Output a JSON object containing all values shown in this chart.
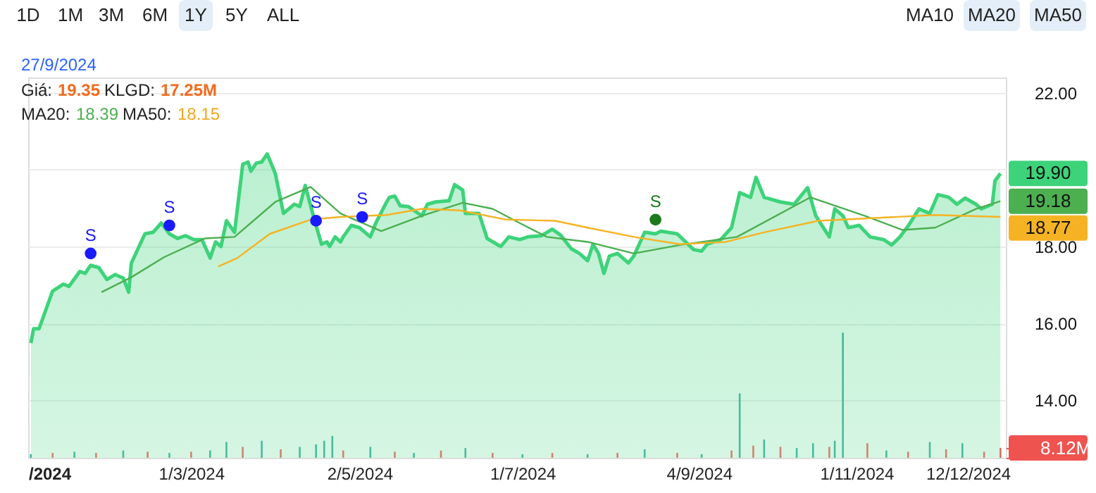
{
  "chart_data": {
    "type": "area",
    "xlim": [
      "2024-01-01",
      "2024-12-26"
    ],
    "xticks": [
      {
        "value": "2024-01-01",
        "label": "/2024"
      },
      {
        "value": "2024-03-01",
        "label": "1/3/2024"
      },
      {
        "value": "2024-05-02",
        "label": "2/5/2024"
      },
      {
        "value": "2024-07-01",
        "label": "1/7/2024"
      },
      {
        "value": "2024-09-04",
        "label": "4/9/2024"
      },
      {
        "value": "2024-11-01",
        "label": "1/11/2024"
      },
      {
        "value": "2024-12-12",
        "label": "12/12/2024"
      }
    ],
    "ylim": [
      12.5,
      22.4
    ],
    "yticks": [
      {
        "value": 14,
        "label": "14.00"
      },
      {
        "value": 16,
        "label": "16.00"
      },
      {
        "value": 18,
        "label": "18.00"
      },
      {
        "value": 20,
        "label": null
      },
      {
        "value": 22,
        "label": "22.00"
      }
    ],
    "y2lim": [
      0,
      313
    ],
    "y2ticks": [
      {
        "value": 0,
        "label": null
      },
      {
        "value": 8.12,
        "label": "8.12M"
      }
    ],
    "grid": "y",
    "series": [
      {
        "color": "#3dd37a",
        "x": [
          "2024-01-02",
          "2024-01-03",
          "2024-01-05",
          "2024-01-10",
          "2024-01-14",
          "2024-01-16",
          "2024-01-20",
          "2024-01-22",
          "2024-01-24",
          "2024-01-27",
          "2024-01-30",
          "2024-02-02",
          "2024-02-05",
          "2024-02-07",
          "2024-02-08",
          "2024-02-12",
          "2024-02-13",
          "2024-02-16",
          "2024-02-19",
          "2024-02-22",
          "2024-02-25",
          "2024-02-28",
          "2024-03-02",
          "2024-03-05",
          "2024-03-08",
          "2024-03-10",
          "2024-03-12",
          "2024-03-14",
          "2024-03-17",
          "2024-03-20",
          "2024-03-22",
          "2024-03-23",
          "2024-03-25",
          "2024-03-27",
          "2024-03-29",
          "2024-04-01",
          "2024-04-04",
          "2024-04-08",
          "2024-04-10",
          "2024-04-12",
          "2024-04-15",
          "2024-04-18",
          "2024-04-20",
          "2024-04-21",
          "2024-04-23",
          "2024-04-25",
          "2024-04-26",
          "2024-04-29",
          "2024-05-02",
          "2024-05-06",
          "2024-05-08",
          "2024-05-12",
          "2024-05-13",
          "2024-05-15",
          "2024-05-17",
          "2024-05-20",
          "2024-05-22",
          "2024-05-25",
          "2024-05-27",
          "2024-05-30",
          "2024-06-04",
          "2024-06-06",
          "2024-06-09",
          "2024-06-10",
          "2024-06-15",
          "2024-06-18",
          "2024-06-23",
          "2024-06-26",
          "2024-06-30",
          "2024-07-03",
          "2024-07-08",
          "2024-07-12",
          "2024-07-15",
          "2024-07-19",
          "2024-07-22",
          "2024-07-25",
          "2024-07-27",
          "2024-07-29",
          "2024-07-31",
          "2024-08-02",
          "2024-08-05",
          "2024-08-09",
          "2024-08-11",
          "2024-08-15",
          "2024-08-19",
          "2024-08-21",
          "2024-08-27",
          "2024-09-02",
          "2024-09-05",
          "2024-09-07",
          "2024-09-12",
          "2024-09-16",
          "2024-09-19",
          "2024-09-23",
          "2024-09-25",
          "2024-09-28",
          "2024-10-04",
          "2024-10-09",
          "2024-10-14",
          "2024-10-17",
          "2024-10-22",
          "2024-10-24",
          "2024-10-27",
          "2024-10-29",
          "2024-11-02",
          "2024-11-06",
          "2024-11-11",
          "2024-11-14",
          "2024-11-17",
          "2024-11-20",
          "2024-11-24",
          "2024-11-28",
          "2024-12-01",
          "2024-12-05",
          "2024-12-08",
          "2024-12-11",
          "2024-12-15",
          "2024-12-17",
          "2024-12-21",
          "2024-12-22",
          "2024-12-24"
        ],
        "values": [
          15.49,
          15.86,
          15.86,
          16.84,
          17.02,
          16.96,
          17.35,
          17.3,
          17.51,
          17.45,
          17.14,
          17.27,
          17.18,
          16.81,
          17.57,
          18.18,
          18.33,
          18.37,
          18.61,
          18.33,
          18.21,
          18.28,
          18.18,
          18.18,
          17.7,
          18.12,
          18.0,
          18.67,
          18.37,
          20.14,
          20.2,
          19.96,
          20.17,
          20.2,
          20.41,
          19.9,
          18.86,
          19.1,
          19.04,
          19.59,
          18.8,
          18.06,
          18.12,
          18.0,
          18.25,
          18.12,
          18.25,
          18.55,
          18.49,
          18.25,
          18.61,
          19.16,
          19.28,
          19.31,
          19.06,
          19.04,
          18.94,
          18.8,
          19.1,
          19.16,
          19.19,
          19.61,
          19.47,
          18.86,
          18.86,
          18.21,
          18.0,
          18.25,
          18.18,
          18.25,
          18.28,
          18.45,
          18.3,
          17.94,
          17.82,
          17.63,
          18.06,
          17.82,
          17.3,
          17.75,
          17.82,
          17.57,
          17.75,
          18.37,
          18.33,
          18.4,
          18.33,
          17.92,
          17.88,
          18.06,
          18.18,
          18.49,
          19.4,
          19.28,
          19.8,
          19.28,
          19.16,
          19.1,
          19.53,
          18.8,
          18.25,
          18.98,
          18.8,
          18.49,
          18.55,
          18.25,
          18.18,
          18.04,
          18.25,
          18.53,
          18.98,
          18.86,
          19.35,
          19.28,
          19.1,
          19.26,
          19.1,
          18.98,
          19.1,
          19.71,
          19.9
        ]
      },
      {
        "type": "line",
        "color": "#4caf50",
        "x": [
          "2024-01-28",
          "2024-02-08",
          "2024-02-20",
          "2024-03-06",
          "2024-03-17",
          "2024-04-01",
          "2024-04-14",
          "2024-04-25",
          "2024-05-10",
          "2024-05-25",
          "2024-06-09",
          "2024-06-20",
          "2024-06-30",
          "2024-07-10",
          "2024-07-25",
          "2024-08-11",
          "2024-08-28",
          "2024-09-18",
          "2024-10-15",
          "2024-11-04",
          "2024-11-18",
          "2024-11-30",
          "2024-12-15",
          "2024-12-24"
        ],
        "values": [
          16.81,
          17.2,
          17.72,
          18.21,
          18.25,
          19.16,
          19.55,
          18.86,
          18.4,
          18.8,
          19.14,
          18.98,
          18.61,
          18.25,
          18.12,
          17.82,
          18.04,
          18.25,
          19.28,
          18.8,
          18.43,
          18.49,
          18.98,
          19.18
        ]
      },
      {
        "type": "line",
        "color": "#f5b324",
        "x": [
          "2024-03-11",
          "2024-03-18",
          "2024-03-30",
          "2024-04-14",
          "2024-04-25",
          "2024-05-12",
          "2024-05-25",
          "2024-06-08",
          "2024-06-25",
          "2024-07-13",
          "2024-07-25",
          "2024-08-11",
          "2024-08-28",
          "2024-09-14",
          "2024-09-28",
          "2024-10-18",
          "2024-11-04",
          "2024-11-30",
          "2024-12-24"
        ],
        "values": [
          17.48,
          17.7,
          18.33,
          18.7,
          18.77,
          18.82,
          18.98,
          18.94,
          18.7,
          18.67,
          18.49,
          18.25,
          18.06,
          18.12,
          18.37,
          18.67,
          18.73,
          18.82,
          18.77
        ]
      },
      {
        "type": "scatter",
        "marker": "circle",
        "colors": [
          "#1a1aff",
          "#1a1aff",
          "#1a1aff",
          "#1a1aff",
          "#1b7a1b"
        ],
        "x": [
          "2024-01-24",
          "2024-02-22",
          "2024-04-16",
          "2024-05-03",
          "2024-08-19"
        ],
        "values": [
          17.82,
          18.55,
          18.67,
          18.77,
          18.7
        ],
        "value_labels": [
          "S",
          "S",
          "S",
          "S",
          "S"
        ]
      },
      {
        "type": "bar",
        "axis": "y2",
        "x": [
          "2024-01-02",
          "2024-01-10",
          "2024-01-18",
          "2024-01-26",
          "2024-02-05",
          "2024-02-14",
          "2024-02-22",
          "2024-03-01",
          "2024-03-08",
          "2024-03-14",
          "2024-03-20",
          "2024-03-27",
          "2024-04-03",
          "2024-04-10",
          "2024-04-16",
          "2024-04-19",
          "2024-04-22",
          "2024-04-26",
          "2024-05-06",
          "2024-05-15",
          "2024-05-22",
          "2024-06-01",
          "2024-06-10",
          "2024-06-20",
          "2024-07-01",
          "2024-07-12",
          "2024-07-25",
          "2024-08-05",
          "2024-08-15",
          "2024-08-27",
          "2024-09-05",
          "2024-09-16",
          "2024-09-19",
          "2024-09-24",
          "2024-09-28",
          "2024-10-04",
          "2024-10-10",
          "2024-10-16",
          "2024-10-22",
          "2024-10-24",
          "2024-10-27",
          "2024-11-05",
          "2024-11-12",
          "2024-11-20",
          "2024-11-28",
          "2024-12-04",
          "2024-12-10",
          "2024-12-18",
          "2024-12-24"
        ],
        "values": [
          3,
          4,
          5,
          4,
          6,
          5,
          4,
          5,
          6,
          13,
          9,
          14,
          7,
          9,
          11,
          14,
          18,
          6,
          9,
          5,
          4,
          6,
          8,
          4,
          3,
          4,
          3,
          4,
          7,
          4,
          3,
          6,
          53,
          10,
          15,
          9,
          8,
          12,
          9,
          14,
          103,
          12,
          6,
          5,
          13,
          7,
          12,
          5,
          8.12
        ],
        "colors": [
          "#26a69a",
          "#ef5350",
          "#26a69a",
          "#ef5350",
          "#26a69a",
          "#ef5350",
          "#26a69a",
          "#ef5350",
          "#26a69a",
          "#26a69a",
          "#ef5350",
          "#26a69a",
          "#ef5350",
          "#26a69a",
          "#26a69a",
          "#26a69a",
          "#26a69a",
          "#ef5350",
          "#26a69a",
          "#ef5350",
          "#26a69a",
          "#ef5350",
          "#26a69a",
          "#ef5350",
          "#26a69a",
          "#ef5350",
          "#26a69a",
          "#ef5350",
          "#26a69a",
          "#ef5350",
          "#26a69a",
          "#ef5350",
          "#26a69a",
          "#ef5350",
          "#26a69a",
          "#ef5350",
          "#26a69a",
          "#26a69a",
          "#ef5350",
          "#26a69a",
          "#26a69a",
          "#ef5350",
          "#26a69a",
          "#ef5350",
          "#26a69a",
          "#ef5350",
          "#26a69a",
          "#ef5350",
          "#ef5350"
        ]
      }
    ],
    "annotations": [
      "1D",
      "1M",
      "3M",
      "6M",
      "1Y",
      "5Y",
      "ALL",
      "MA10",
      "MA20",
      "MA50",
      "27/9/2024",
      "Giá:",
      "19.35",
      "KLGD:",
      "17.25M",
      "MA20:",
      "18.39",
      "MA50:",
      "18.15",
      "19.90",
      "19.18",
      "18.77"
    ]
  }
}
